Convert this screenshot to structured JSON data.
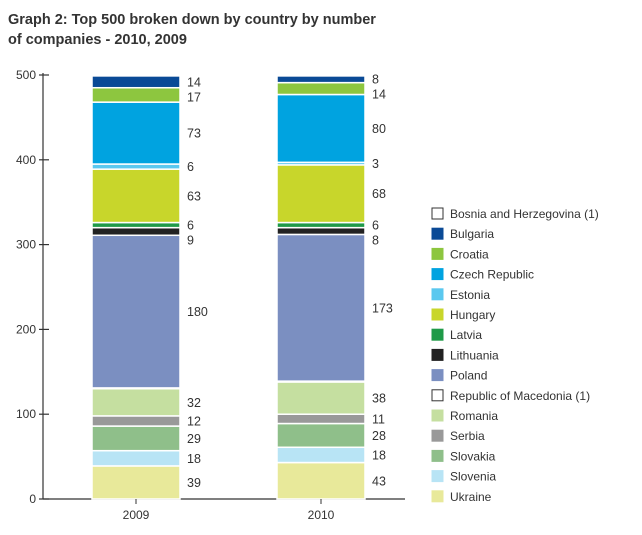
{
  "chart_data": {
    "type": "bar",
    "stacked": true,
    "title": "Graph 2: Top 500 broken down by country by number of companies - 2010, 2009",
    "categories": [
      "2009",
      "2010"
    ],
    "ylim": [
      0,
      500
    ],
    "yticks": [
      0,
      100,
      200,
      300,
      400,
      500
    ],
    "grid": false,
    "legend_position": "right",
    "series": [
      {
        "name": "Ukraine",
        "values": [
          39,
          43
        ],
        "color": "#e8e99a",
        "labeled": true
      },
      {
        "name": "Slovenia",
        "values": [
          18,
          18
        ],
        "color": "#b8e4f5",
        "labeled": true
      },
      {
        "name": "Slovakia",
        "values": [
          29,
          28
        ],
        "color": "#8fbf8a",
        "labeled": true
      },
      {
        "name": "Serbia",
        "values": [
          12,
          11
        ],
        "color": "#999999",
        "labeled": true
      },
      {
        "name": "Romania",
        "values": [
          32,
          38
        ],
        "color": "#c5dfa0",
        "labeled": true
      },
      {
        "name": "Republic of Macedonia (1)",
        "values": [
          1,
          1
        ],
        "color": "#ffffff",
        "labeled": false
      },
      {
        "name": "Poland",
        "values": [
          180,
          173
        ],
        "color": "#7b8fc1",
        "labeled": true
      },
      {
        "name": "Lithuania",
        "values": [
          9,
          8
        ],
        "color": "#222222",
        "labeled": true
      },
      {
        "name": "Latvia",
        "values": [
          6,
          6
        ],
        "color": "#1f9a48",
        "labeled": true
      },
      {
        "name": "Hungary",
        "values": [
          63,
          68
        ],
        "color": "#c8d62b",
        "labeled": true
      },
      {
        "name": "Estonia",
        "values": [
          6,
          3
        ],
        "color": "#5bc8ef",
        "labeled": true
      },
      {
        "name": "Czech Republic",
        "values": [
          73,
          80
        ],
        "color": "#00a3e0",
        "labeled": true
      },
      {
        "name": "Croatia",
        "values": [
          17,
          14
        ],
        "color": "#8dc63f",
        "labeled": true
      },
      {
        "name": "Bulgaria",
        "values": [
          14,
          8
        ],
        "color": "#0a4a96",
        "labeled": true
      },
      {
        "name": "Bosnia and Herzegovina (1)",
        "values": [
          1,
          1
        ],
        "color": "#ffffff",
        "labeled": false
      }
    ]
  }
}
